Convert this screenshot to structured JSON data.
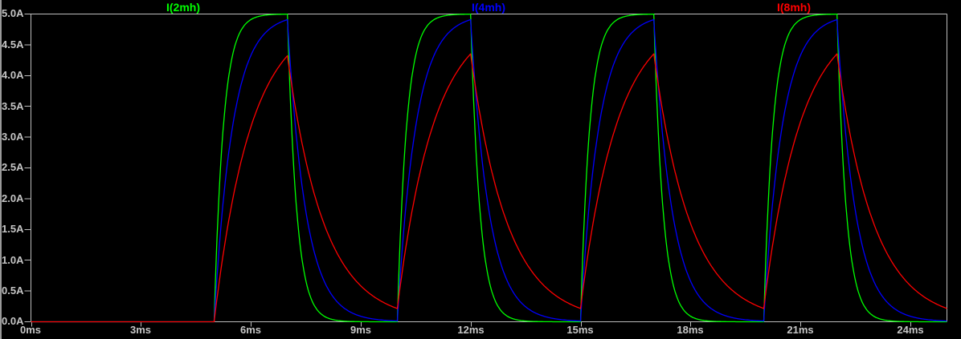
{
  "theme": {
    "background": "#000000",
    "axis_color": "#bdbdbd",
    "tick_text_color": "#c6c6c6"
  },
  "chart_data": {
    "type": "line",
    "title": "",
    "description": "Inductor current waveforms for three RL circuits (2mH, 4mH, 8mH) driven by a repeating voltage pulse",
    "grid": false,
    "legend_position": "top",
    "x_axis": {
      "unit": "ms",
      "range_ms": [
        0,
        25
      ],
      "ticks": [
        "0ms",
        "3ms",
        "6ms",
        "9ms",
        "12ms",
        "15ms",
        "18ms",
        "21ms",
        "24ms"
      ],
      "tick_values_ms": [
        0,
        3,
        6,
        9,
        12,
        15,
        18,
        21,
        24
      ]
    },
    "y_axis": {
      "unit": "A",
      "range_A": [
        0,
        5
      ],
      "ticks": [
        "5.0A",
        "4.5A",
        "4.0A",
        "3.5A",
        "3.0A",
        "2.5A",
        "2.0A",
        "1.5A",
        "1.0A",
        "0.5A",
        "0.0A"
      ],
      "tick_values_A": [
        5,
        4.5,
        4,
        3.5,
        3,
        2.5,
        2,
        1.5,
        1,
        0.5,
        0
      ]
    },
    "series": [
      {
        "name": "I(2mh)",
        "color": "#00ff00",
        "inductance_mH": 2,
        "tau_ms": 0.25,
        "peak_A": 5.0,
        "valley_A": 0.0
      },
      {
        "name": "I(4mh)",
        "color": "#0000ff",
        "inductance_mH": 4,
        "tau_ms": 0.5,
        "peak_A": 4.91,
        "valley_A": 0.01
      },
      {
        "name": "I(8mh)",
        "color": "#ff0000",
        "inductance_mH": 8,
        "tau_ms": 1.0,
        "peak_A": 4.35,
        "valley_A": 0.22
      }
    ],
    "drive_pulse": {
      "amplitude_A": 5,
      "initial_current_A": 0,
      "on_intervals_ms": [
        [
          5,
          7
        ],
        [
          10,
          12
        ],
        [
          15,
          17
        ],
        [
          20,
          22
        ]
      ],
      "on_time_ms": 2,
      "period_ms": 5,
      "sim_end_ms": 25
    }
  }
}
